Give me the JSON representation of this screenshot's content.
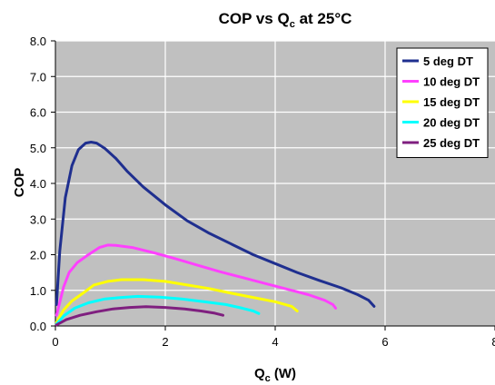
{
  "chart_data": {
    "type": "line",
    "title": {
      "main": "COP vs Q",
      "sub": "c",
      "rest": " at 25°C"
    },
    "xlabel": {
      "main": "Q",
      "sub": "c",
      "rest": " (W)"
    },
    "ylabel": "COP",
    "xlim": [
      0,
      8
    ],
    "ylim": [
      0,
      8
    ],
    "x_ticks": [
      0,
      2,
      4,
      6,
      8
    ],
    "x_tick_labels": [
      "0",
      "2",
      "4",
      "6",
      "8"
    ],
    "y_ticks": [
      0,
      1,
      2,
      3,
      4,
      5,
      6,
      7,
      8
    ],
    "y_tick_labels": [
      "0.0",
      "1.0",
      "2.0",
      "3.0",
      "4.0",
      "5.0",
      "6.0",
      "7.0",
      "8.0"
    ],
    "grid": true,
    "plot_background": "#c0c0c0",
    "grid_color": "#ffffff",
    "legend_position": "top-right",
    "series": [
      {
        "name": "5 deg DT",
        "color": "#1f2f8f",
        "points": [
          [
            0.02,
            0.6
          ],
          [
            0.08,
            2.1
          ],
          [
            0.18,
            3.6
          ],
          [
            0.3,
            4.5
          ],
          [
            0.42,
            4.95
          ],
          [
            0.55,
            5.13
          ],
          [
            0.65,
            5.16
          ],
          [
            0.75,
            5.13
          ],
          [
            0.9,
            4.98
          ],
          [
            1.1,
            4.7
          ],
          [
            1.3,
            4.35
          ],
          [
            1.6,
            3.9
          ],
          [
            2.0,
            3.4
          ],
          [
            2.4,
            2.95
          ],
          [
            2.8,
            2.6
          ],
          [
            3.2,
            2.3
          ],
          [
            3.6,
            2.0
          ],
          [
            4.0,
            1.75
          ],
          [
            4.4,
            1.5
          ],
          [
            4.8,
            1.28
          ],
          [
            5.2,
            1.07
          ],
          [
            5.5,
            0.88
          ],
          [
            5.7,
            0.72
          ],
          [
            5.8,
            0.55
          ]
        ]
      },
      {
        "name": "10 deg DT",
        "color": "#ff40ff",
        "points": [
          [
            0.02,
            0.3
          ],
          [
            0.15,
            1.1
          ],
          [
            0.25,
            1.5
          ],
          [
            0.4,
            1.78
          ],
          [
            0.6,
            2.0
          ],
          [
            0.8,
            2.2
          ],
          [
            0.95,
            2.27
          ],
          [
            1.1,
            2.26
          ],
          [
            1.4,
            2.2
          ],
          [
            1.8,
            2.05
          ],
          [
            2.2,
            1.88
          ],
          [
            2.6,
            1.7
          ],
          [
            3.0,
            1.52
          ],
          [
            3.4,
            1.36
          ],
          [
            3.8,
            1.2
          ],
          [
            4.2,
            1.04
          ],
          [
            4.6,
            0.88
          ],
          [
            4.9,
            0.72
          ],
          [
            5.05,
            0.6
          ],
          [
            5.1,
            0.5
          ]
        ]
      },
      {
        "name": "15 deg DT",
        "color": "#ffff00",
        "points": [
          [
            0.02,
            0.1
          ],
          [
            0.15,
            0.45
          ],
          [
            0.3,
            0.7
          ],
          [
            0.5,
            0.92
          ],
          [
            0.7,
            1.15
          ],
          [
            0.95,
            1.25
          ],
          [
            1.2,
            1.3
          ],
          [
            1.6,
            1.3
          ],
          [
            2.0,
            1.25
          ],
          [
            2.4,
            1.15
          ],
          [
            2.8,
            1.05
          ],
          [
            3.2,
            0.92
          ],
          [
            3.6,
            0.8
          ],
          [
            4.0,
            0.68
          ],
          [
            4.3,
            0.55
          ],
          [
            4.4,
            0.42
          ]
        ]
      },
      {
        "name": "20 deg DT",
        "color": "#00ffff",
        "points": [
          [
            0.02,
            0.05
          ],
          [
            0.15,
            0.28
          ],
          [
            0.35,
            0.5
          ],
          [
            0.6,
            0.65
          ],
          [
            0.9,
            0.76
          ],
          [
            1.2,
            0.8
          ],
          [
            1.5,
            0.83
          ],
          [
            1.9,
            0.81
          ],
          [
            2.3,
            0.76
          ],
          [
            2.7,
            0.68
          ],
          [
            3.1,
            0.6
          ],
          [
            3.4,
            0.5
          ],
          [
            3.6,
            0.42
          ],
          [
            3.7,
            0.35
          ]
        ]
      },
      {
        "name": "25 deg DT",
        "color": "#7f1f7f",
        "points": [
          [
            0.02,
            0.03
          ],
          [
            0.2,
            0.18
          ],
          [
            0.45,
            0.3
          ],
          [
            0.75,
            0.4
          ],
          [
            1.05,
            0.48
          ],
          [
            1.35,
            0.52
          ],
          [
            1.65,
            0.54
          ],
          [
            2.0,
            0.52
          ],
          [
            2.35,
            0.48
          ],
          [
            2.65,
            0.42
          ],
          [
            2.9,
            0.36
          ],
          [
            3.05,
            0.3
          ]
        ]
      }
    ]
  }
}
